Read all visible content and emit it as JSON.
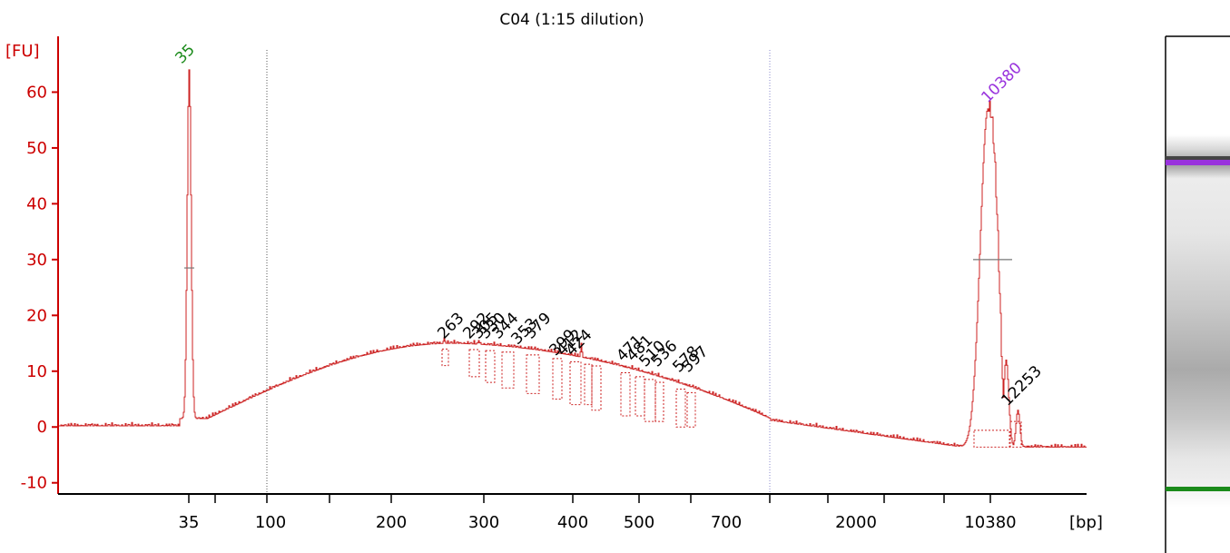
{
  "chart_data": {
    "type": "line",
    "title": "C04 (1:15 dilution)",
    "ylabel": "[FU]",
    "xlabel": "[bp]",
    "ylim": [
      -12,
      70
    ],
    "y_ticks": [
      "-10",
      "0",
      "10",
      "20",
      "30",
      "40",
      "50",
      "60"
    ],
    "x_tick_labels": [
      "35",
      "100",
      "200",
      "300",
      "400",
      "500",
      "700",
      "2000",
      "10380"
    ],
    "grid": false,
    "colors": {
      "trace": "#cc2222",
      "axis_y": "#cc0000",
      "lower_marker": "#1a8a1a",
      "upper_marker": "#9933dd"
    },
    "marker_labels": [
      {
        "label": "35",
        "x_bp": 35,
        "y": 64,
        "color": "#1a8a1a"
      },
      {
        "label": "10380",
        "x_bp": 10380,
        "y": 57,
        "color": "#9933dd"
      }
    ],
    "peak_labels": [
      {
        "label": "263",
        "y": 15
      },
      {
        "label": "292",
        "y": 15
      },
      {
        "label": "305",
        "y": 15
      },
      {
        "label": "330",
        "y": 15
      },
      {
        "label": "344",
        "y": 15
      },
      {
        "label": "353",
        "y": 14
      },
      {
        "label": "379",
        "y": 15
      },
      {
        "label": "399",
        "y": 12
      },
      {
        "label": "412",
        "y": 12
      },
      {
        "label": "424",
        "y": 12
      },
      {
        "label": "471",
        "y": 11
      },
      {
        "label": "481",
        "y": 11
      },
      {
        "label": "510",
        "y": 10
      },
      {
        "label": "536",
        "y": 10
      },
      {
        "label": "578",
        "y": 9
      },
      {
        "label": "597",
        "y": 9
      },
      {
        "label": "12253",
        "y": 3
      }
    ]
  }
}
